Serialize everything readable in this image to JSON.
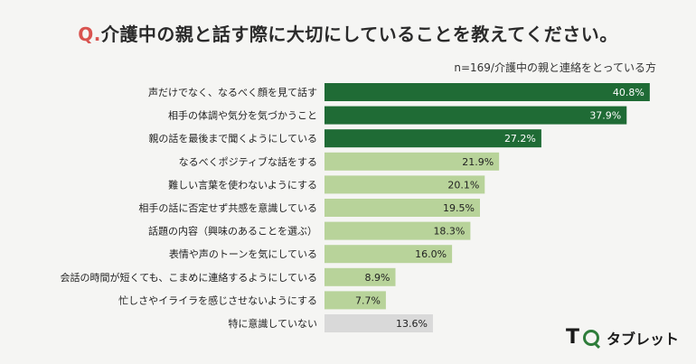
{
  "header": {
    "q_prefix": "Q.",
    "title": "介護中の親と話す際に大切にしていることを教えてください。",
    "note": "n=169/介護中の親と連絡をとっている方"
  },
  "brand": {
    "t": "T",
    "name": "タブレット"
  },
  "colors": {
    "dark": "#1f6b35",
    "light": "#b8d39a",
    "gray": "#d9d9d9"
  },
  "chart_data": {
    "type": "bar",
    "orientation": "horizontal",
    "categories": [
      "声だけでなく、なるべく顔を見て話す",
      "相手の体調や気分を気づかうこと",
      "親の話を最後まで聞くようにしている",
      "なるべくポジティブな話をする",
      "難しい言葉を使わないようにする",
      "相手の話に否定せず共感を意識している",
      "話題の内容（興味のあることを選ぶ）",
      "表情や声のトーンを気にしている",
      "会話の時間が短くても、こまめに連絡するようにしている",
      "忙しさやイライラを感じさせないようにする",
      "特に意識していない"
    ],
    "values": [
      40.8,
      37.9,
      27.2,
      21.9,
      20.1,
      19.5,
      18.3,
      16.0,
      8.9,
      7.7,
      13.6
    ],
    "labels": [
      "40.8%",
      "37.9%",
      "27.2%",
      "21.9%",
      "20.1%",
      "19.5%",
      "18.3%",
      "16.0%",
      "8.9%",
      "7.7%",
      "13.6%"
    ],
    "bar_color_keys": [
      "dark",
      "dark",
      "dark",
      "light",
      "light",
      "light",
      "light",
      "light",
      "light",
      "light",
      "gray"
    ],
    "xlim": [
      0,
      45
    ]
  }
}
